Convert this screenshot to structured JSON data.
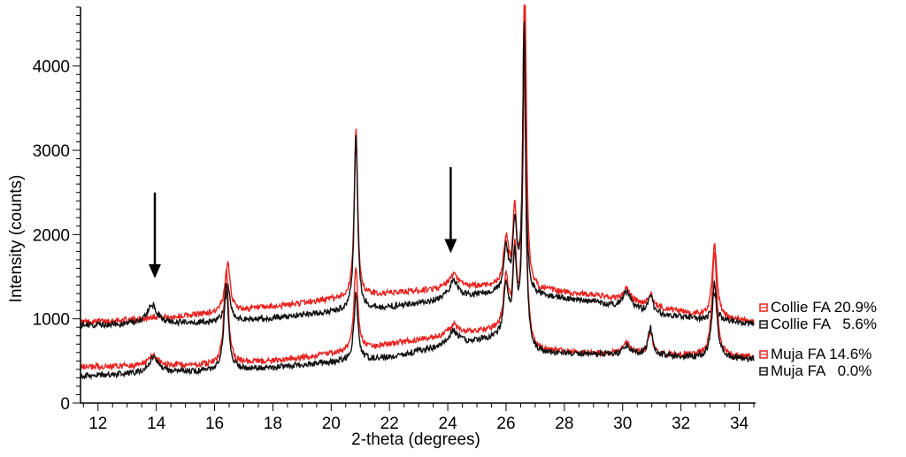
{
  "chart_data": {
    "type": "line",
    "title": "",
    "xlabel": "2-theta (degrees)",
    "ylabel": "Intensity (counts)",
    "xlim": [
      11.4,
      34.5
    ],
    "ylim": [
      0,
      4700
    ],
    "x_ticks": [
      12,
      14,
      16,
      18,
      20,
      22,
      24,
      26,
      28,
      30,
      32,
      34
    ],
    "y_ticks": [
      0,
      1000,
      2000,
      3000,
      4000
    ],
    "legend_position": "right",
    "series": [
      {
        "name": "Collie FA 20.9%",
        "color": "#e8231f",
        "baseline": [
          [
            11.4,
            960
          ],
          [
            14,
            1000
          ],
          [
            16,
            1070
          ],
          [
            18,
            1140
          ],
          [
            20,
            1230
          ],
          [
            22,
            1300
          ],
          [
            24,
            1360
          ],
          [
            25.3,
            1380
          ],
          [
            27,
            1340
          ],
          [
            29,
            1280
          ],
          [
            31,
            1150
          ],
          [
            33,
            1020
          ],
          [
            34.5,
            960
          ]
        ],
        "peaks": [
          [
            13.9,
            30,
            0.2
          ],
          [
            16.45,
            600,
            0.1
          ],
          [
            20.85,
            2000,
            0.07
          ],
          [
            24.2,
            150,
            0.2
          ],
          [
            26.0,
            570,
            0.1
          ],
          [
            26.3,
            870,
            0.08
          ],
          [
            26.65,
            3400,
            0.06
          ],
          [
            30.15,
            150,
            0.15
          ],
          [
            30.95,
            140,
            0.09
          ],
          [
            33.15,
            850,
            0.1
          ]
        ]
      },
      {
        "name": "Collie FA   5.6%",
        "color": "#111111",
        "baseline": [
          [
            11.4,
            920
          ],
          [
            14,
            940
          ],
          [
            16,
            960
          ],
          [
            18,
            1010
          ],
          [
            20,
            1080
          ],
          [
            22,
            1140
          ],
          [
            24,
            1230
          ],
          [
            25.3,
            1290
          ],
          [
            27,
            1270
          ],
          [
            29,
            1200
          ],
          [
            31,
            1070
          ],
          [
            33,
            980
          ],
          [
            34.5,
            950
          ]
        ],
        "peaks": [
          [
            13.85,
            230,
            0.2
          ],
          [
            16.45,
            420,
            0.1
          ],
          [
            20.85,
            2100,
            0.07
          ],
          [
            24.2,
            200,
            0.2
          ],
          [
            26.0,
            520,
            0.1
          ],
          [
            26.3,
            820,
            0.08
          ],
          [
            26.62,
            3200,
            0.06
          ],
          [
            30.15,
            200,
            0.15
          ],
          [
            30.95,
            220,
            0.09
          ],
          [
            33.15,
            330,
            0.1
          ]
        ]
      },
      {
        "name": "Muja FA 14.6%",
        "color": "#e8231f",
        "baseline": [
          [
            11.4,
            430
          ],
          [
            14,
            440
          ],
          [
            16,
            450
          ],
          [
            18,
            500
          ],
          [
            20,
            580
          ],
          [
            22,
            700
          ],
          [
            24,
            800
          ],
          [
            25.3,
            850
          ],
          [
            26.3,
            850
          ],
          [
            27,
            620
          ],
          [
            29,
            590
          ],
          [
            31,
            580
          ],
          [
            33,
            550
          ],
          [
            34.5,
            540
          ]
        ],
        "peaks": [
          [
            13.9,
            120,
            0.2
          ],
          [
            16.4,
            1150,
            0.09
          ],
          [
            20.85,
            1000,
            0.08
          ],
          [
            24.2,
            120,
            0.2
          ],
          [
            26.0,
            600,
            0.1
          ],
          [
            26.3,
            900,
            0.08
          ],
          [
            26.62,
            3900,
            0.06
          ],
          [
            30.15,
            130,
            0.15
          ],
          [
            30.95,
            260,
            0.09
          ],
          [
            33.15,
            1250,
            0.1
          ]
        ]
      },
      {
        "name": "Muja FA   0.0%",
        "color": "#111111",
        "baseline": [
          [
            11.4,
            320
          ],
          [
            14,
            360
          ],
          [
            16,
            380
          ],
          [
            18,
            420
          ],
          [
            20,
            480
          ],
          [
            22,
            540
          ],
          [
            24,
            680
          ],
          [
            25.3,
            750
          ],
          [
            26.3,
            760
          ],
          [
            27,
            580
          ],
          [
            29,
            580
          ],
          [
            31,
            570
          ],
          [
            33,
            530
          ],
          [
            34.5,
            520
          ]
        ],
        "peaks": [
          [
            13.9,
            180,
            0.2
          ],
          [
            16.4,
            1050,
            0.09
          ],
          [
            20.85,
            800,
            0.08
          ],
          [
            24.2,
            160,
            0.2
          ],
          [
            26.0,
            600,
            0.1
          ],
          [
            26.3,
            900,
            0.08
          ],
          [
            26.62,
            3800,
            0.06
          ],
          [
            30.15,
            100,
            0.15
          ],
          [
            30.95,
            320,
            0.09
          ],
          [
            33.15,
            900,
            0.1
          ]
        ]
      }
    ],
    "annotations": [
      {
        "type": "arrow",
        "x": 13.95,
        "y_from": 2500,
        "y_to": 1480
      },
      {
        "type": "arrow",
        "x": 24.1,
        "y_from": 2800,
        "y_to": 1780
      }
    ]
  }
}
